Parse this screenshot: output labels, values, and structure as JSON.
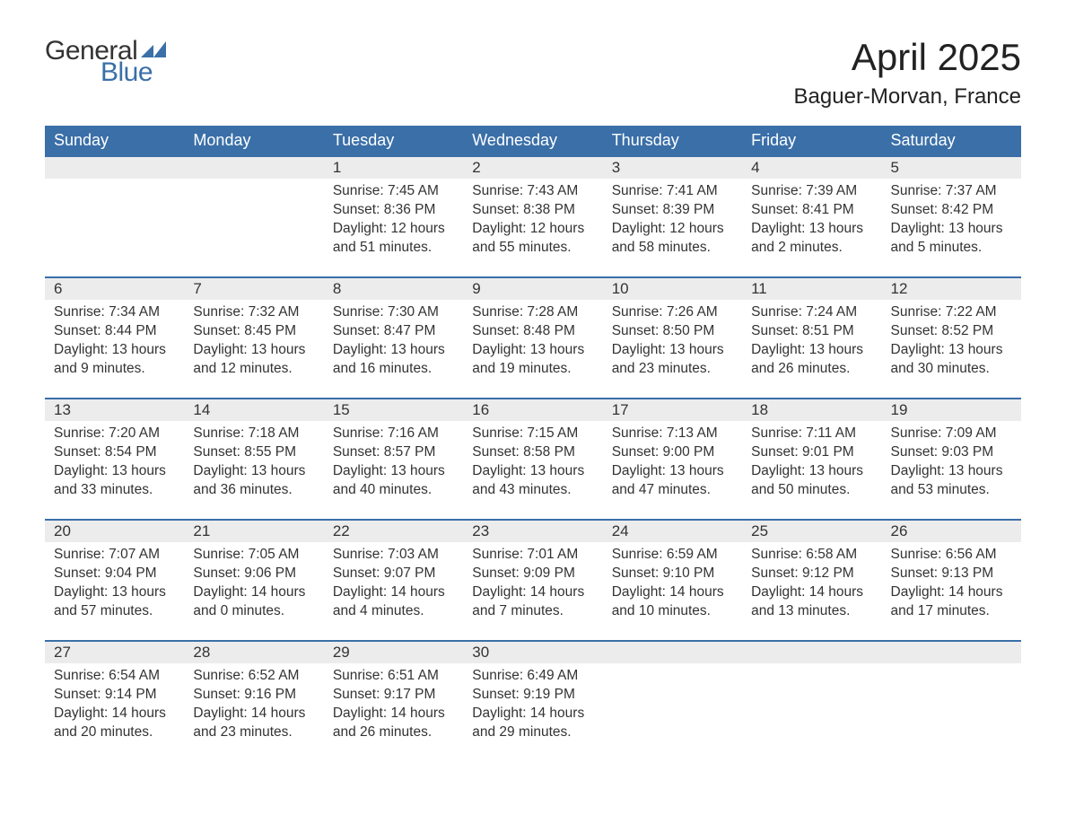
{
  "brand": {
    "text_general": "General",
    "text_blue": "Blue",
    "flag_color": "#3a6fa8",
    "text_color_general": "#333333",
    "text_color_blue": "#3a6fa8"
  },
  "header": {
    "month_title": "April 2025",
    "location": "Baguer-Morvan, France"
  },
  "colors": {
    "header_bg": "#3a6fa8",
    "header_text": "#ffffff",
    "daynum_bg": "#ececec",
    "daynum_border": "#3a6fa8",
    "body_text": "#333333",
    "background": "#ffffff"
  },
  "calendar": {
    "day_headers": [
      "Sunday",
      "Monday",
      "Tuesday",
      "Wednesday",
      "Thursday",
      "Friday",
      "Saturday"
    ],
    "weeks": [
      [
        null,
        null,
        {
          "n": "1",
          "sunrise": "Sunrise: 7:45 AM",
          "sunset": "Sunset: 8:36 PM",
          "day1": "Daylight: 12 hours",
          "day2": "and 51 minutes."
        },
        {
          "n": "2",
          "sunrise": "Sunrise: 7:43 AM",
          "sunset": "Sunset: 8:38 PM",
          "day1": "Daylight: 12 hours",
          "day2": "and 55 minutes."
        },
        {
          "n": "3",
          "sunrise": "Sunrise: 7:41 AM",
          "sunset": "Sunset: 8:39 PM",
          "day1": "Daylight: 12 hours",
          "day2": "and 58 minutes."
        },
        {
          "n": "4",
          "sunrise": "Sunrise: 7:39 AM",
          "sunset": "Sunset: 8:41 PM",
          "day1": "Daylight: 13 hours",
          "day2": "and 2 minutes."
        },
        {
          "n": "5",
          "sunrise": "Sunrise: 7:37 AM",
          "sunset": "Sunset: 8:42 PM",
          "day1": "Daylight: 13 hours",
          "day2": "and 5 minutes."
        }
      ],
      [
        {
          "n": "6",
          "sunrise": "Sunrise: 7:34 AM",
          "sunset": "Sunset: 8:44 PM",
          "day1": "Daylight: 13 hours",
          "day2": "and 9 minutes."
        },
        {
          "n": "7",
          "sunrise": "Sunrise: 7:32 AM",
          "sunset": "Sunset: 8:45 PM",
          "day1": "Daylight: 13 hours",
          "day2": "and 12 minutes."
        },
        {
          "n": "8",
          "sunrise": "Sunrise: 7:30 AM",
          "sunset": "Sunset: 8:47 PM",
          "day1": "Daylight: 13 hours",
          "day2": "and 16 minutes."
        },
        {
          "n": "9",
          "sunrise": "Sunrise: 7:28 AM",
          "sunset": "Sunset: 8:48 PM",
          "day1": "Daylight: 13 hours",
          "day2": "and 19 minutes."
        },
        {
          "n": "10",
          "sunrise": "Sunrise: 7:26 AM",
          "sunset": "Sunset: 8:50 PM",
          "day1": "Daylight: 13 hours",
          "day2": "and 23 minutes."
        },
        {
          "n": "11",
          "sunrise": "Sunrise: 7:24 AM",
          "sunset": "Sunset: 8:51 PM",
          "day1": "Daylight: 13 hours",
          "day2": "and 26 minutes."
        },
        {
          "n": "12",
          "sunrise": "Sunrise: 7:22 AM",
          "sunset": "Sunset: 8:52 PM",
          "day1": "Daylight: 13 hours",
          "day2": "and 30 minutes."
        }
      ],
      [
        {
          "n": "13",
          "sunrise": "Sunrise: 7:20 AM",
          "sunset": "Sunset: 8:54 PM",
          "day1": "Daylight: 13 hours",
          "day2": "and 33 minutes."
        },
        {
          "n": "14",
          "sunrise": "Sunrise: 7:18 AM",
          "sunset": "Sunset: 8:55 PM",
          "day1": "Daylight: 13 hours",
          "day2": "and 36 minutes."
        },
        {
          "n": "15",
          "sunrise": "Sunrise: 7:16 AM",
          "sunset": "Sunset: 8:57 PM",
          "day1": "Daylight: 13 hours",
          "day2": "and 40 minutes."
        },
        {
          "n": "16",
          "sunrise": "Sunrise: 7:15 AM",
          "sunset": "Sunset: 8:58 PM",
          "day1": "Daylight: 13 hours",
          "day2": "and 43 minutes."
        },
        {
          "n": "17",
          "sunrise": "Sunrise: 7:13 AM",
          "sunset": "Sunset: 9:00 PM",
          "day1": "Daylight: 13 hours",
          "day2": "and 47 minutes."
        },
        {
          "n": "18",
          "sunrise": "Sunrise: 7:11 AM",
          "sunset": "Sunset: 9:01 PM",
          "day1": "Daylight: 13 hours",
          "day2": "and 50 minutes."
        },
        {
          "n": "19",
          "sunrise": "Sunrise: 7:09 AM",
          "sunset": "Sunset: 9:03 PM",
          "day1": "Daylight: 13 hours",
          "day2": "and 53 minutes."
        }
      ],
      [
        {
          "n": "20",
          "sunrise": "Sunrise: 7:07 AM",
          "sunset": "Sunset: 9:04 PM",
          "day1": "Daylight: 13 hours",
          "day2": "and 57 minutes."
        },
        {
          "n": "21",
          "sunrise": "Sunrise: 7:05 AM",
          "sunset": "Sunset: 9:06 PM",
          "day1": "Daylight: 14 hours",
          "day2": "and 0 minutes."
        },
        {
          "n": "22",
          "sunrise": "Sunrise: 7:03 AM",
          "sunset": "Sunset: 9:07 PM",
          "day1": "Daylight: 14 hours",
          "day2": "and 4 minutes."
        },
        {
          "n": "23",
          "sunrise": "Sunrise: 7:01 AM",
          "sunset": "Sunset: 9:09 PM",
          "day1": "Daylight: 14 hours",
          "day2": "and 7 minutes."
        },
        {
          "n": "24",
          "sunrise": "Sunrise: 6:59 AM",
          "sunset": "Sunset: 9:10 PM",
          "day1": "Daylight: 14 hours",
          "day2": "and 10 minutes."
        },
        {
          "n": "25",
          "sunrise": "Sunrise: 6:58 AM",
          "sunset": "Sunset: 9:12 PM",
          "day1": "Daylight: 14 hours",
          "day2": "and 13 minutes."
        },
        {
          "n": "26",
          "sunrise": "Sunrise: 6:56 AM",
          "sunset": "Sunset: 9:13 PM",
          "day1": "Daylight: 14 hours",
          "day2": "and 17 minutes."
        }
      ],
      [
        {
          "n": "27",
          "sunrise": "Sunrise: 6:54 AM",
          "sunset": "Sunset: 9:14 PM",
          "day1": "Daylight: 14 hours",
          "day2": "and 20 minutes."
        },
        {
          "n": "28",
          "sunrise": "Sunrise: 6:52 AM",
          "sunset": "Sunset: 9:16 PM",
          "day1": "Daylight: 14 hours",
          "day2": "and 23 minutes."
        },
        {
          "n": "29",
          "sunrise": "Sunrise: 6:51 AM",
          "sunset": "Sunset: 9:17 PM",
          "day1": "Daylight: 14 hours",
          "day2": "and 26 minutes."
        },
        {
          "n": "30",
          "sunrise": "Sunrise: 6:49 AM",
          "sunset": "Sunset: 9:19 PM",
          "day1": "Daylight: 14 hours",
          "day2": "and 29 minutes."
        },
        null,
        null,
        null
      ]
    ]
  }
}
